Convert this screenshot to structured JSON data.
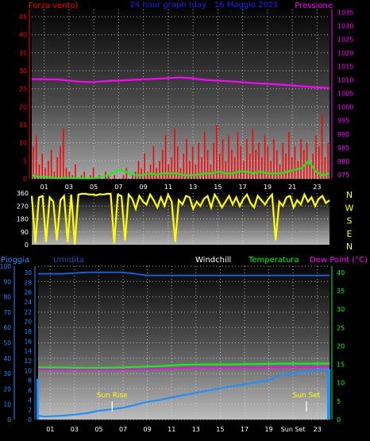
{
  "colors": {
    "wind": "#ff0000",
    "gust": "#00ff00",
    "pressure": "#ff00ff",
    "direction": "#ffff00",
    "rain": "#1e90ff",
    "humidity": "#1f4fbf",
    "temperature": "#00ff00",
    "dewpoint": "#ff00ff",
    "title": "#2020ff",
    "windchill": "#ffffff",
    "grid": "#dddddd"
  },
  "chart_data": [
    {
      "type": "line",
      "title": "24 hour graph (day : 16 Maggio 2021",
      "left_label": "Forza vento)",
      "right_label": "Pressione",
      "xticks": [
        "01",
        "03",
        "05",
        "07",
        "09",
        "11",
        "13",
        "15",
        "17",
        "19",
        "21",
        "23"
      ],
      "left_axis": {
        "ticks": [
          "45",
          "40",
          "35",
          "30",
          "25",
          "20",
          "15",
          "10",
          "5",
          "0"
        ],
        "range": [
          0,
          47
        ]
      },
      "right_axis": {
        "ticks": [
          "1035",
          "1030",
          "1025",
          "1020",
          "1015",
          "1010",
          "1005",
          "1000",
          "995",
          "990",
          "985",
          "980",
          "975"
        ],
        "range": [
          973.5,
          1036
        ]
      },
      "series": [
        {
          "key": "pressure",
          "x": [
            0,
            2,
            4,
            5,
            6,
            8,
            10,
            12,
            13,
            14,
            16,
            18,
            20,
            22,
            23,
            24
          ],
          "values": [
            1010.3,
            1010.2,
            1009.3,
            1009.2,
            1009.6,
            1010.0,
            1010.4,
            1010.9,
            1010.6,
            1010.0,
            1009.5,
            1008.8,
            1008.3,
            1007.6,
            1007.3,
            1007.0
          ]
        },
        {
          "key": "wind",
          "values": [
            9,
            12,
            4,
            7,
            3,
            5,
            8,
            2,
            6,
            9,
            14,
            3,
            2,
            1,
            4,
            0,
            1,
            2,
            0,
            1,
            3,
            0,
            1,
            0,
            2,
            1,
            0,
            1,
            0,
            0,
            1,
            3,
            0,
            1,
            2,
            5,
            3,
            7,
            2,
            4,
            9,
            3,
            5,
            8,
            12,
            4,
            6,
            14,
            9,
            3,
            7,
            11,
            5,
            9,
            4,
            10,
            6,
            13,
            8,
            4,
            10,
            15,
            7,
            11,
            5,
            12,
            8,
            6,
            13,
            9,
            5,
            11,
            7,
            14,
            8,
            10,
            6,
            12,
            9,
            5,
            11,
            8,
            4,
            10,
            7,
            13,
            6,
            9,
            5,
            11,
            8,
            10,
            4,
            7,
            12,
            9,
            18,
            6,
            10
          ]
        },
        {
          "key": "gust",
          "values": [
            1,
            0.5,
            0.5,
            0.3,
            0.2,
            0.3,
            0.2,
            0.2,
            0.1,
            0.2,
            0.5,
            1,
            2,
            2.5,
            1.5,
            1,
            1,
            1.5,
            1.2,
            1.5,
            1.5,
            1.5,
            1,
            1,
            1.2,
            1.5,
            1.5,
            2,
            1.5,
            1.5,
            2,
            2,
            1.5,
            2,
            1.5,
            1.5,
            1.5,
            2,
            2.5,
            3,
            5,
            2,
            1,
            1.5
          ]
        }
      ]
    },
    {
      "type": "line",
      "left_axis": {
        "ticks": [
          "360",
          "270",
          "180",
          "90",
          "0"
        ],
        "range": [
          0,
          360
        ]
      },
      "right_labels": [
        "N",
        "W",
        "S",
        "E",
        "N"
      ],
      "series": [
        {
          "key": "direction",
          "values": [
            340,
            10,
            330,
            340,
            20,
            330,
            300,
            30,
            310,
            340,
            20,
            350,
            0,
            350,
            355,
            355,
            350,
            350,
            345,
            352,
            350,
            355,
            355,
            10,
            350,
            340,
            30,
            350,
            320,
            250,
            340,
            300,
            280,
            350,
            310,
            260,
            330,
            270,
            350,
            300,
            20,
            310,
            280,
            340,
            330,
            250,
            300,
            270,
            320,
            340,
            260,
            350,
            310,
            260,
            300,
            340,
            280,
            330,
            270,
            320,
            350,
            290,
            260,
            340,
            310,
            280,
            320,
            350,
            30,
            300,
            270,
            330,
            340,
            260,
            310,
            280,
            350,
            300,
            330,
            270,
            320,
            340,
            290,
            310
          ]
        }
      ]
    },
    {
      "type": "line",
      "header": {
        "rain": "Pioggia",
        "humidity": "Umidita",
        "windchill": "Windchill",
        "temperature": "Temperatura",
        "dewpoint": "Dew Point (°C)"
      },
      "xticks": [
        "01",
        "03",
        "05",
        "07",
        "09",
        "11",
        "13",
        "15",
        "17",
        "19",
        "Sun Set",
        "23"
      ],
      "left_axis": {
        "ticks": [
          "100",
          "90",
          "80",
          "70",
          "60",
          "50",
          "40",
          "30",
          "20",
          "10",
          "0"
        ],
        "range": [
          0,
          100
        ]
      },
      "inner_axis": {
        "ticks": [
          "30",
          "28",
          "26",
          "24",
          "22",
          "20",
          "18",
          "16",
          "14",
          "12",
          "10",
          "8",
          "6",
          "4",
          "2",
          "0"
        ],
        "range": [
          0,
          31.3
        ]
      },
      "right_axis": {
        "ticks": [
          "40",
          "35",
          "30",
          "25",
          "20",
          "15",
          "10",
          "5",
          "0"
        ],
        "range": [
          0,
          41.7
        ]
      },
      "annotations": {
        "sun_rise": "Sun Rise",
        "sun_set": "Sun Set"
      },
      "series": [
        {
          "key": "humidity",
          "x": [
            0,
            2,
            4,
            6,
            7,
            8,
            9,
            10,
            12,
            14,
            16,
            18,
            20,
            22,
            24
          ],
          "values": [
            95,
            95,
            96,
            96,
            96,
            95,
            94,
            94,
            94,
            94,
            94,
            94,
            94,
            94,
            94
          ]
        },
        {
          "key": "temperature",
          "x": [
            0,
            2,
            4,
            6,
            8,
            10,
            12,
            14,
            16,
            18,
            20,
            22,
            24
          ],
          "values": [
            14.2,
            14.2,
            14.0,
            14.1,
            14.3,
            14.5,
            14.9,
            15.0,
            15.0,
            15.1,
            15.2,
            15.2,
            15.2
          ]
        },
        {
          "key": "dewpoint",
          "x": [
            0,
            2,
            4,
            6,
            8,
            10,
            12,
            14,
            16,
            18,
            20,
            22,
            24
          ],
          "values": [
            13.7,
            13.6,
            13.6,
            13.6,
            13.7,
            13.9,
            14.1,
            14.2,
            14.2,
            14.2,
            14.3,
            14.3,
            14.3
          ]
        },
        {
          "key": "rain",
          "x": [
            0,
            0.5,
            2,
            3,
            4,
            5,
            6,
            7,
            8,
            9,
            10,
            12,
            14,
            16,
            18,
            19,
            20,
            22,
            23,
            24
          ],
          "values": [
            0.8,
            0.6,
            0.8,
            1.0,
            1.3,
            1.8,
            2.1,
            2.4,
            3.0,
            3.6,
            4.0,
            5.0,
            5.9,
            6.8,
            7.6,
            8.0,
            9.1,
            9.7,
            10.1,
            10.2
          ]
        }
      ]
    }
  ]
}
